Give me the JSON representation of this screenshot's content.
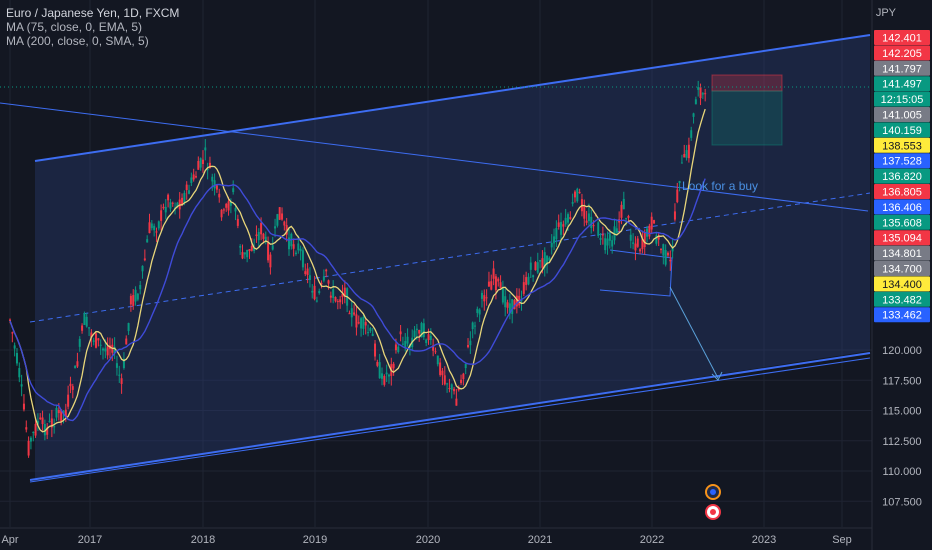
{
  "legend": {
    "title": "Euro / Japanese Yen, 1D, FXCM",
    "ma1": "MA (75, close, 0, EMA, 5)",
    "ma2": "MA (200, close, 0, SMA, 5)"
  },
  "currency": "JPY",
  "annotation": "Look for a buy",
  "chart_data": {
    "type": "candlestick",
    "symbol": "EURJPY",
    "timeframe": "1D",
    "x_ticks": [
      "Apr",
      "2017",
      "2018",
      "2019",
      "2020",
      "2021",
      "2022",
      "2023",
      "Sep"
    ],
    "y_ticks": [
      120.0,
      117.5,
      115.0,
      112.5,
      110.0,
      107.5
    ],
    "y_tick_labels": [
      "120.000",
      "117.500",
      "115.000",
      "112.500",
      "110.000",
      "107.500"
    ],
    "price_labels": [
      {
        "label": "142.401",
        "value": 142.401,
        "color": "#f23645"
      },
      {
        "label": "142.205",
        "value": 142.205,
        "color": "#f23645"
      },
      {
        "label": "141.797",
        "value": 141.797,
        "color": "#787b86"
      },
      {
        "label": "141.497",
        "value": 141.497,
        "color": "#089981"
      },
      {
        "label": "12:15:05",
        "value": 141.3,
        "color": "#089981"
      },
      {
        "label": "141.005",
        "value": 141.005,
        "color": "#787b86"
      },
      {
        "label": "140.159",
        "value": 140.159,
        "color": "#089981"
      },
      {
        "label": "138.553",
        "value": 138.553,
        "color": "#ffeb3b"
      },
      {
        "label": "137.528",
        "value": 137.528,
        "color": "#2962ff"
      },
      {
        "label": "136.820",
        "value": 136.82,
        "color": "#089981"
      },
      {
        "label": "136.805",
        "value": 136.805,
        "color": "#f23645"
      },
      {
        "label": "136.406",
        "value": 136.406,
        "color": "#2962ff"
      },
      {
        "label": "135.608",
        "value": 135.608,
        "color": "#089981"
      },
      {
        "label": "135.094",
        "value": 135.094,
        "color": "#f23645"
      },
      {
        "label": "134.801",
        "value": 134.801,
        "color": "#787b86"
      },
      {
        "label": "134.700",
        "value": 134.7,
        "color": "#787b86"
      },
      {
        "label": "134.400",
        "value": 134.4,
        "color": "#ffeb3b"
      },
      {
        "label": "133.482",
        "value": 133.482,
        "color": "#089981"
      },
      {
        "label": "133.462",
        "value": 133.462,
        "color": "#2962ff"
      }
    ],
    "price_path": [
      [
        "2016-04",
        122.5
      ],
      [
        "2016-05",
        118.0
      ],
      [
        "2016-06",
        112.0
      ],
      [
        "2016-07",
        114.0
      ],
      [
        "2016-08",
        113.5
      ],
      [
        "2016-09",
        114.5
      ],
      [
        "2016-10",
        115.0
      ],
      [
        "2016-11",
        118.0
      ],
      [
        "2016-12",
        122.5
      ],
      [
        "2017-01",
        121.0
      ],
      [
        "2017-02",
        120.0
      ],
      [
        "2017-03",
        120.5
      ],
      [
        "2017-04",
        117.0
      ],
      [
        "2017-05",
        124.0
      ],
      [
        "2017-06",
        125.0
      ],
      [
        "2017-07",
        130.0
      ],
      [
        "2017-08",
        130.5
      ],
      [
        "2017-09",
        132.5
      ],
      [
        "2017-10",
        132.0
      ],
      [
        "2017-11",
        133.0
      ],
      [
        "2017-12",
        134.5
      ],
      [
        "2018-01",
        136.0
      ],
      [
        "2018-02",
        133.5
      ],
      [
        "2018-03",
        131.0
      ],
      [
        "2018-04",
        133.0
      ],
      [
        "2018-05",
        127.5
      ],
      [
        "2018-06",
        128.5
      ],
      [
        "2018-07",
        130.0
      ],
      [
        "2018-08",
        127.5
      ],
      [
        "2018-09",
        131.5
      ],
      [
        "2018-10",
        129.0
      ],
      [
        "2018-11",
        128.5
      ],
      [
        "2018-12",
        126.5
      ],
      [
        "2019-01",
        124.0
      ],
      [
        "2019-02",
        126.0
      ],
      [
        "2019-03",
        124.0
      ],
      [
        "2019-04",
        125.0
      ],
      [
        "2019-05",
        122.5
      ],
      [
        "2019-06",
        122.0
      ],
      [
        "2019-07",
        121.0
      ],
      [
        "2019-08",
        117.5
      ],
      [
        "2019-09",
        118.5
      ],
      [
        "2019-10",
        121.0
      ],
      [
        "2019-11",
        120.5
      ],
      [
        "2019-12",
        122.0
      ],
      [
        "2020-01",
        121.0
      ],
      [
        "2020-02",
        119.0
      ],
      [
        "2020-03",
        117.5
      ],
      [
        "2020-04",
        116.0
      ],
      [
        "2020-05",
        119.0
      ],
      [
        "2020-06",
        122.5
      ],
      [
        "2020-07",
        124.5
      ],
      [
        "2020-08",
        126.0
      ],
      [
        "2020-09",
        124.5
      ],
      [
        "2020-10",
        123.5
      ],
      [
        "2020-11",
        124.5
      ],
      [
        "2020-12",
        126.5
      ],
      [
        "2021-01",
        127.0
      ],
      [
        "2021-02",
        128.0
      ],
      [
        "2021-03",
        130.0
      ],
      [
        "2021-04",
        130.5
      ],
      [
        "2021-05",
        133.0
      ],
      [
        "2021-06",
        131.0
      ],
      [
        "2021-07",
        130.5
      ],
      [
        "2021-08",
        128.5
      ],
      [
        "2021-09",
        129.5
      ],
      [
        "2021-10",
        132.0
      ],
      [
        "2021-11",
        129.0
      ],
      [
        "2021-12",
        128.5
      ],
      [
        "2022-01",
        130.5
      ],
      [
        "2022-02",
        128.5
      ],
      [
        "2022-03",
        127.0
      ],
      [
        "2022-04",
        134.5
      ],
      [
        "2022-05",
        136.5
      ],
      [
        "2022-06",
        142.0
      ],
      [
        "2022-07",
        140.0
      ]
    ]
  }
}
